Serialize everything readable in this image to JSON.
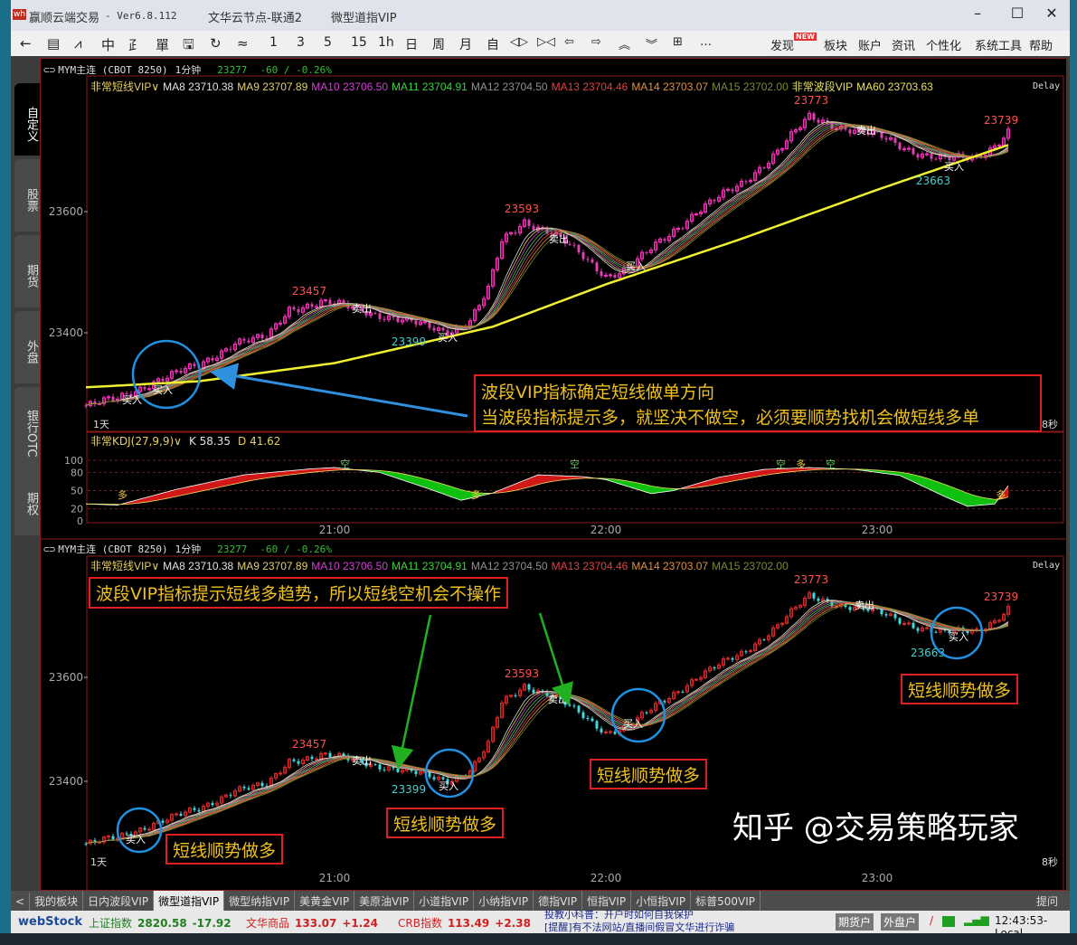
{
  "window": {
    "app_name": "赢顺云端交易",
    "version": "- Ver6.8.112",
    "server": "文华云节点-联通2",
    "contract_title": "微型道指VIP",
    "minimize": "–",
    "maximize": "☐",
    "close": "✕"
  },
  "toolbar": {
    "icons": [
      {
        "name": "back-arrow-icon",
        "glyph": "←"
      },
      {
        "name": "list-icon",
        "glyph": "▤"
      },
      {
        "name": "line-chart-icon",
        "glyph": "⩘"
      },
      {
        "name": "candlestick-icon",
        "glyph": "中"
      },
      {
        "name": "draw-icon",
        "glyph": "⺪"
      },
      {
        "name": "order-icon",
        "glyph": "單"
      },
      {
        "name": "save-icon",
        "glyph": "🖫"
      },
      {
        "name": "refresh-icon",
        "glyph": "↻"
      },
      {
        "name": "indicator-icon",
        "glyph": "≈"
      }
    ],
    "periods": [
      "1",
      "3",
      "5",
      "15",
      "1h",
      "日",
      "周",
      "月",
      "自"
    ],
    "nav_icons": [
      {
        "name": "zoom-in-icon",
        "glyph": "◁▷"
      },
      {
        "name": "zoom-out-icon",
        "glyph": "▷◁"
      },
      {
        "name": "scroll-left-icon",
        "glyph": "⇦"
      },
      {
        "name": "scroll-right-icon",
        "glyph": "⇨"
      },
      {
        "name": "up-icon",
        "glyph": "︽"
      },
      {
        "name": "down-icon",
        "glyph": "︾"
      },
      {
        "name": "layout-icon",
        "glyph": "⊞"
      },
      {
        "name": "more-icon",
        "glyph": "…"
      }
    ],
    "menus": [
      "发现",
      "板块",
      "账户",
      "资讯",
      "个性化",
      "系统工具",
      "帮助"
    ],
    "new_badge": "NEW"
  },
  "side_tabs": [
    "自定义",
    "股票",
    "期货",
    "外盘",
    "银行OTC",
    "期权"
  ],
  "pane_header": {
    "symbol": "MYM主连 (CBOT 8250)",
    "period": "1分钟",
    "price": "23277",
    "change": "-60 / -0.26%"
  },
  "ma_legend": [
    {
      "label": "非常短线VIP∨",
      "color": "#e8d060"
    },
    {
      "label": "MA8 23710.38",
      "color": "#e0e0e0"
    },
    {
      "label": "MA9 23707.89",
      "color": "#e0d070"
    },
    {
      "label": "MA10 23706.50",
      "color": "#d040d0"
    },
    {
      "label": "MA11 23704.91",
      "color": "#40d040"
    },
    {
      "label": "MA12 23704.50",
      "color": "#909090"
    },
    {
      "label": "MA13 23704.46",
      "color": "#e04040"
    },
    {
      "label": "MA14 23703.07",
      "color": "#e09040"
    },
    {
      "label": "MA15 23702.00",
      "color": "#7a8a30"
    }
  ],
  "ma60_legend": [
    {
      "label": "非常波段VIP",
      "color": "#e8e060"
    },
    {
      "label": "MA60 23703.63",
      "color": "#e8e060"
    }
  ],
  "delay": "Delay",
  "corner_left": "1天",
  "corner_right": "8秒",
  "kdj": {
    "label": "非常KDJ(27,9,9)∨",
    "k": "K 58.35",
    "d": "D 41.62",
    "ticks": [
      "100",
      "80",
      "50",
      "20",
      "0"
    ]
  },
  "chart_data": {
    "type": "candlestick",
    "x_ticks": [
      "21:00",
      "22:00",
      "23:00"
    ],
    "y_ticks": [
      "23600",
      "23400"
    ],
    "price_path": [
      [
        "20:05",
        23280
      ],
      [
        "20:12",
        23290
      ],
      [
        "20:20",
        23320
      ],
      [
        "20:30",
        23345
      ],
      [
        "20:38",
        23385
      ],
      [
        "20:45",
        23390
      ],
      [
        "20:50",
        23440
      ],
      [
        "20:57",
        23450
      ],
      [
        "21:05",
        23440
      ],
      [
        "21:15",
        23420
      ],
      [
        "21:25",
        23402
      ],
      [
        "21:30",
        23420
      ],
      [
        "21:34",
        23470
      ],
      [
        "21:37",
        23550
      ],
      [
        "21:42",
        23585
      ],
      [
        "21:48",
        23565
      ],
      [
        "21:55",
        23525
      ],
      [
        "22:00",
        23495
      ],
      [
        "22:05",
        23505
      ],
      [
        "22:12",
        23550
      ],
      [
        "22:20",
        23600
      ],
      [
        "22:30",
        23645
      ],
      [
        "22:38",
        23700
      ],
      [
        "22:45",
        23755
      ],
      [
        "22:52",
        23740
      ],
      [
        "23:00",
        23725
      ],
      [
        "23:08",
        23700
      ],
      [
        "23:15",
        23685
      ],
      [
        "23:22",
        23690
      ],
      [
        "23:26",
        23710
      ],
      [
        "23:29",
        23732
      ]
    ],
    "ma60_path": [
      [
        "20:05",
        23310
      ],
      [
        "20:30",
        23320
      ],
      [
        "21:00",
        23350
      ],
      [
        "21:35",
        23410
      ],
      [
        "22:00",
        23480
      ],
      [
        "22:30",
        23555
      ],
      [
        "23:00",
        23636
      ],
      [
        "23:29",
        23710
      ]
    ],
    "kdj_k_path": [
      [
        "20:05",
        28
      ],
      [
        "20:12",
        26
      ],
      [
        "20:25",
        52
      ],
      [
        "20:40",
        76
      ],
      [
        "20:55",
        86
      ],
      [
        "21:00",
        88
      ],
      [
        "21:10",
        80
      ],
      [
        "21:20",
        55
      ],
      [
        "21:28",
        34
      ],
      [
        "21:35",
        46
      ],
      [
        "21:45",
        76
      ],
      [
        "21:55",
        73
      ],
      [
        "22:00",
        68
      ],
      [
        "22:10",
        45
      ],
      [
        "22:15",
        50
      ],
      [
        "22:25",
        72
      ],
      [
        "22:35",
        85
      ],
      [
        "22:45",
        88
      ],
      [
        "22:55",
        85
      ],
      [
        "23:05",
        75
      ],
      [
        "23:15",
        40
      ],
      [
        "23:20",
        24
      ],
      [
        "23:26",
        28
      ],
      [
        "23:29",
        58
      ]
    ],
    "price_labels": [
      "23457",
      "23399",
      "23593",
      "23773",
      "23663",
      "23739"
    ],
    "signals": {
      "sell": "卖出",
      "buy": "买入",
      "long": "多",
      "short": "空"
    }
  },
  "annotations": {
    "top_line1": "波段VIP指标确定短线做单方向",
    "top_line2": "当波段指标提示多，就坚决不做空，必须要顺势找机会做短线多单",
    "bottom_main": "波段VIP指标提示短线多趋势，所以短线空机会不操作",
    "long_label": "短线顺势做多",
    "colors": {
      "box": "#e02020",
      "text": "#f0c020",
      "circle": "#2090e0",
      "arrow_blue": "#3090e0",
      "arrow_green": "#20b020"
    }
  },
  "tabs": [
    "<",
    "我的板块",
    "日内波段VIP",
    "微型道指VIP",
    "微型纳指VIP",
    "美黄金VIP",
    "美原油VIP",
    "小道指VIP",
    "小纳指VIP",
    "德指VIP",
    "恒指VIP",
    "小恒指VIP",
    "标普500VIP"
  ],
  "tabs_right": "提问",
  "watermark": "知乎 @交易策略玩家",
  "status": {
    "logo": "webStock",
    "idx": [
      {
        "name": "上证指数",
        "value": "2820.58",
        "chg": "-17.92",
        "color": "#208020"
      },
      {
        "name": "文华商品",
        "value": "133.07",
        "chg": "+1.24",
        "color": "#d02020"
      },
      {
        "name": "CRB指数",
        "value": "113.49",
        "chg": "+2.38",
        "color": "#d02020"
      }
    ],
    "news1": "投教小科普：开户时如何自我保护",
    "news2": "[提醒]有不法网站/直播间假冒文华进行诈骗",
    "btn_futures": "期货户",
    "btn_foreign": "外盘户",
    "time": "12:43:53-Local"
  }
}
